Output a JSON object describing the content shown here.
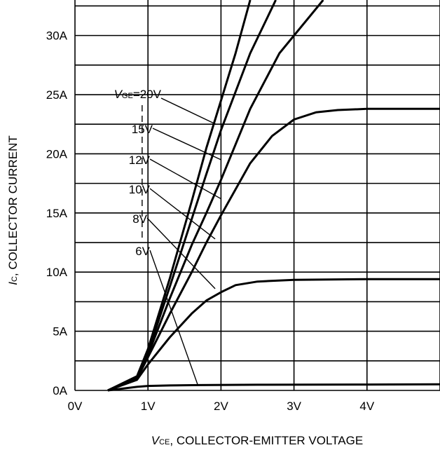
{
  "chart_data": {
    "type": "line",
    "xlabel": {
      "symbol": "V",
      "subscript": "CE",
      "text": ", COLLECTOR-EMITTER VOLTAGE"
    },
    "ylabel": {
      "symbol": "I",
      "subscript": "C",
      "text": ", COLLECTOR CURRENT"
    },
    "x_ticks": [
      {
        "value": 0,
        "label": "0V"
      },
      {
        "value": 1,
        "label": "1V"
      },
      {
        "value": 2,
        "label": "2V"
      },
      {
        "value": 3,
        "label": "3V"
      },
      {
        "value": 4,
        "label": "4V"
      }
    ],
    "y_ticks": [
      {
        "value": 0,
        "label": "0A"
      },
      {
        "value": 5,
        "label": "5A"
      },
      {
        "value": 10,
        "label": "10A"
      },
      {
        "value": 15,
        "label": "15A"
      },
      {
        "value": 20,
        "label": "20A"
      },
      {
        "value": 25,
        "label": "25A"
      },
      {
        "value": 30,
        "label": "30A"
      }
    ],
    "xlim": [
      0,
      5
    ],
    "ylim": [
      0,
      33
    ],
    "grid": true,
    "param_symbol": "V",
    "param_subscript": "GE",
    "series": [
      {
        "name": "20V",
        "points": [
          [
            0.45,
            0
          ],
          [
            0.85,
            1.2
          ],
          [
            1.0,
            3.5
          ],
          [
            1.3,
            9.5
          ],
          [
            1.6,
            16
          ],
          [
            1.8,
            20.5
          ],
          [
            2.0,
            24.5
          ],
          [
            2.2,
            28.5
          ],
          [
            2.4,
            33
          ]
        ],
        "label_anchor": [
          1.93,
          22.5
        ]
      },
      {
        "name": "15V",
        "points": [
          [
            0.45,
            0
          ],
          [
            0.85,
            1.1
          ],
          [
            1.0,
            3.2
          ],
          [
            1.3,
            8.8
          ],
          [
            1.6,
            14.5
          ],
          [
            1.8,
            18.3
          ],
          [
            2.0,
            22
          ],
          [
            2.4,
            28.5
          ],
          [
            2.75,
            33
          ]
        ],
        "label_anchor": [
          2.0,
          19.5
        ]
      },
      {
        "name": "12V",
        "points": [
          [
            0.45,
            0
          ],
          [
            0.85,
            1.0
          ],
          [
            1.0,
            3.0
          ],
          [
            1.3,
            7.8
          ],
          [
            1.6,
            12.3
          ],
          [
            1.8,
            15
          ],
          [
            2.0,
            17.8
          ],
          [
            2.4,
            23.8
          ],
          [
            2.8,
            28.5
          ],
          [
            3.4,
            33
          ]
        ],
        "label_anchor": [
          2.0,
          16.2
        ]
      },
      {
        "name": "10V",
        "points": [
          [
            0.45,
            0
          ],
          [
            0.85,
            1.0
          ],
          [
            1.0,
            2.8
          ],
          [
            1.3,
            6.5
          ],
          [
            1.6,
            10
          ],
          [
            1.8,
            12.5
          ],
          [
            2.0,
            14.8
          ],
          [
            2.2,
            17
          ],
          [
            2.4,
            19.2
          ],
          [
            2.7,
            21.5
          ],
          [
            3.0,
            22.9
          ],
          [
            3.3,
            23.5
          ],
          [
            3.6,
            23.7
          ],
          [
            4.0,
            23.8
          ],
          [
            5.0,
            23.8
          ]
        ],
        "label_anchor": [
          1.92,
          12.8
        ]
      },
      {
        "name": "8V",
        "points": [
          [
            0.45,
            0
          ],
          [
            0.85,
            0.9
          ],
          [
            1.0,
            2.2
          ],
          [
            1.3,
            4.5
          ],
          [
            1.6,
            6.5
          ],
          [
            1.8,
            7.6
          ],
          [
            2.0,
            8.3
          ],
          [
            2.2,
            8.9
          ],
          [
            2.5,
            9.2
          ],
          [
            3.0,
            9.35
          ],
          [
            4.0,
            9.4
          ],
          [
            5.0,
            9.4
          ]
        ],
        "label_anchor": [
          1.92,
          8.6
        ]
      },
      {
        "name": "6V",
        "points": [
          [
            0.45,
            0
          ],
          [
            0.85,
            0.3
          ],
          [
            1.0,
            0.38
          ],
          [
            1.3,
            0.42
          ],
          [
            1.7,
            0.45
          ],
          [
            2.5,
            0.48
          ],
          [
            4.0,
            0.5
          ],
          [
            5.0,
            0.52
          ]
        ],
        "label_anchor": [
          1.68,
          0.5
        ]
      }
    ]
  }
}
